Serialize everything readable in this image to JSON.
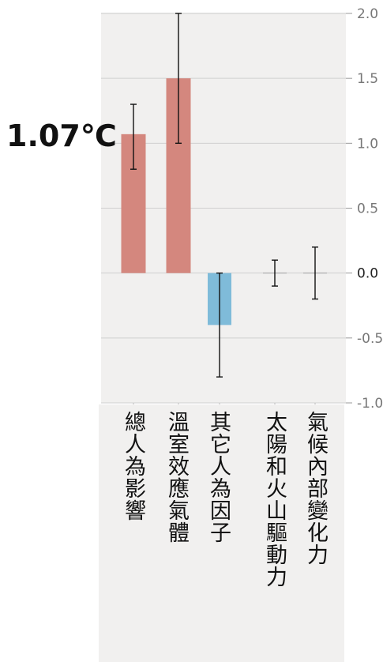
{
  "chart_data": {
    "type": "bar",
    "categories": [
      "總人為影響",
      "溫室效應氣體",
      "其它人為因子",
      "太陽和火山驅動力",
      "氣候內部變化力"
    ],
    "values": [
      1.07,
      1.5,
      -0.4,
      0.0,
      0.0
    ],
    "error_low": [
      0.8,
      1.0,
      -0.8,
      -0.1,
      -0.2
    ],
    "error_high": [
      1.3,
      2.0,
      0.0,
      0.1,
      0.2
    ],
    "bar_colors": [
      "#d4877e",
      "#d4877e",
      "#7fbbd9",
      "#b8b8b8",
      "#b8b8b8"
    ],
    "ylim": [
      -1.0,
      2.0
    ],
    "yticks": [
      "2.0",
      "1.5",
      "1.0",
      "0.5",
      "0.0",
      "-0.5",
      "-1.0"
    ],
    "ytick_values": [
      2.0,
      1.5,
      1.0,
      0.5,
      0.0,
      -0.5,
      -1.0
    ],
    "grid": true,
    "annotation": "1.07℃"
  }
}
